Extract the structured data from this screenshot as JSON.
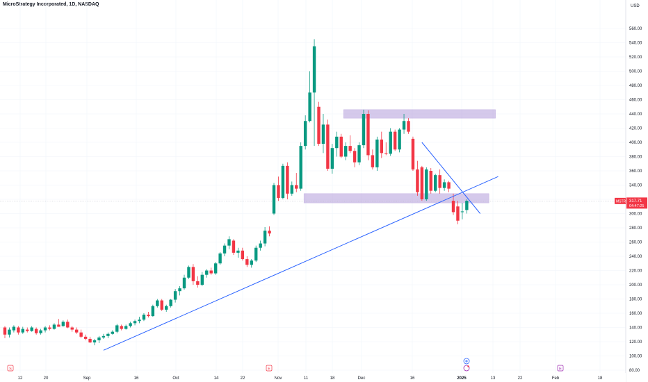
{
  "header": {
    "title": "MicroStrategy Incorporated, 1D, NASDAQ"
  },
  "price_axis": {
    "currency": "USD",
    "ticks": [
      "80.00",
      "100.00",
      "120.00",
      "140.00",
      "160.00",
      "180.00",
      "200.00",
      "220.00",
      "240.00",
      "260.00",
      "280.00",
      "300.00",
      "320.00",
      "340.00",
      "360.00",
      "380.00",
      "400.00",
      "420.00",
      "440.00",
      "460.00",
      "480.00",
      "500.00",
      "520.00",
      "540.00",
      "560.00"
    ]
  },
  "time_axis": {
    "ticks": [
      "12",
      "20",
      "Sep",
      "16",
      "Oct",
      "14",
      "22",
      "Nov",
      "11",
      "18",
      "Dec",
      "16",
      "2025",
      "13",
      "22",
      "Feb",
      "18"
    ]
  },
  "price_label": {
    "symbol": "MSTR",
    "price": "317.71",
    "countdown": "04:47:25",
    "color": "#f23645"
  },
  "event_markers": [
    "S",
    "E",
    "E"
  ],
  "colors": {
    "up": "#089981",
    "down": "#f23645",
    "trendline": "#2962ff",
    "zone": "#b39ddb",
    "grid": "#f0f3fa"
  },
  "chart_data": {
    "type": "candlestick",
    "title": "MicroStrategy Incorporated, 1D, NASDAQ",
    "ylim": [
      75,
      575
    ],
    "candles": [
      {
        "o": 140,
        "h": 142,
        "l": 125,
        "c": 130
      },
      {
        "o": 130,
        "h": 140,
        "l": 126,
        "c": 137
      },
      {
        "o": 136,
        "h": 143,
        "l": 133,
        "c": 141
      },
      {
        "o": 140,
        "h": 142,
        "l": 130,
        "c": 133
      },
      {
        "o": 133,
        "h": 141,
        "l": 131,
        "c": 138
      },
      {
        "o": 137,
        "h": 140,
        "l": 133,
        "c": 135
      },
      {
        "o": 135,
        "h": 142,
        "l": 134,
        "c": 140
      },
      {
        "o": 138,
        "h": 140,
        "l": 130,
        "c": 132
      },
      {
        "o": 132,
        "h": 138,
        "l": 130,
        "c": 136
      },
      {
        "o": 136,
        "h": 142,
        "l": 133,
        "c": 140
      },
      {
        "o": 140,
        "h": 143,
        "l": 136,
        "c": 138
      },
      {
        "o": 138,
        "h": 146,
        "l": 137,
        "c": 144
      },
      {
        "o": 144,
        "h": 152,
        "l": 141,
        "c": 141
      },
      {
        "o": 142,
        "h": 150,
        "l": 141,
        "c": 148
      },
      {
        "o": 148,
        "h": 151,
        "l": 139,
        "c": 140
      },
      {
        "o": 140,
        "h": 142,
        "l": 134,
        "c": 137
      },
      {
        "o": 137,
        "h": 140,
        "l": 131,
        "c": 133
      },
      {
        "o": 133,
        "h": 137,
        "l": 125,
        "c": 127
      },
      {
        "o": 127,
        "h": 130,
        "l": 122,
        "c": 124
      },
      {
        "o": 124,
        "h": 127,
        "l": 118,
        "c": 119
      },
      {
        "o": 119,
        "h": 124,
        "l": 115,
        "c": 122
      },
      {
        "o": 122,
        "h": 128,
        "l": 118,
        "c": 126
      },
      {
        "o": 126,
        "h": 131,
        "l": 124,
        "c": 128
      },
      {
        "o": 128,
        "h": 133,
        "l": 125,
        "c": 131
      },
      {
        "o": 131,
        "h": 136,
        "l": 130,
        "c": 134
      },
      {
        "o": 134,
        "h": 145,
        "l": 132,
        "c": 143
      },
      {
        "o": 142,
        "h": 144,
        "l": 136,
        "c": 138
      },
      {
        "o": 138,
        "h": 144,
        "l": 137,
        "c": 142
      },
      {
        "o": 142,
        "h": 148,
        "l": 140,
        "c": 146
      },
      {
        "o": 146,
        "h": 151,
        "l": 143,
        "c": 149
      },
      {
        "o": 149,
        "h": 155,
        "l": 146,
        "c": 151
      },
      {
        "o": 151,
        "h": 160,
        "l": 149,
        "c": 158
      },
      {
        "o": 158,
        "h": 162,
        "l": 154,
        "c": 156
      },
      {
        "o": 156,
        "h": 172,
        "l": 155,
        "c": 170
      },
      {
        "o": 170,
        "h": 180,
        "l": 168,
        "c": 178
      },
      {
        "o": 178,
        "h": 180,
        "l": 163,
        "c": 165
      },
      {
        "o": 165,
        "h": 172,
        "l": 162,
        "c": 170
      },
      {
        "o": 170,
        "h": 180,
        "l": 168,
        "c": 179
      },
      {
        "o": 179,
        "h": 194,
        "l": 175,
        "c": 191
      },
      {
        "o": 191,
        "h": 198,
        "l": 185,
        "c": 195
      },
      {
        "o": 195,
        "h": 214,
        "l": 193,
        "c": 210
      },
      {
        "o": 210,
        "h": 227,
        "l": 208,
        "c": 225
      },
      {
        "o": 225,
        "h": 229,
        "l": 200,
        "c": 205
      },
      {
        "o": 205,
        "h": 212,
        "l": 196,
        "c": 200
      },
      {
        "o": 200,
        "h": 218,
        "l": 198,
        "c": 214
      },
      {
        "o": 214,
        "h": 222,
        "l": 210,
        "c": 220
      },
      {
        "o": 220,
        "h": 224,
        "l": 214,
        "c": 216
      },
      {
        "o": 216,
        "h": 232,
        "l": 214,
        "c": 230
      },
      {
        "o": 230,
        "h": 246,
        "l": 228,
        "c": 244
      },
      {
        "o": 244,
        "h": 258,
        "l": 240,
        "c": 255
      },
      {
        "o": 255,
        "h": 268,
        "l": 250,
        "c": 264
      },
      {
        "o": 262,
        "h": 264,
        "l": 242,
        "c": 245
      },
      {
        "o": 245,
        "h": 252,
        "l": 238,
        "c": 248
      },
      {
        "o": 248,
        "h": 252,
        "l": 234,
        "c": 236
      },
      {
        "o": 236,
        "h": 240,
        "l": 225,
        "c": 228
      },
      {
        "o": 228,
        "h": 236,
        "l": 224,
        "c": 234
      },
      {
        "o": 234,
        "h": 255,
        "l": 232,
        "c": 252
      },
      {
        "o": 252,
        "h": 262,
        "l": 248,
        "c": 258
      },
      {
        "o": 258,
        "h": 281,
        "l": 254,
        "c": 276
      },
      {
        "o": 276,
        "h": 282,
        "l": 268,
        "c": 272
      },
      {
        "o": 300,
        "h": 343,
        "l": 298,
        "c": 340
      },
      {
        "o": 340,
        "h": 352,
        "l": 318,
        "c": 322
      },
      {
        "o": 322,
        "h": 370,
        "l": 320,
        "c": 367
      },
      {
        "o": 367,
        "h": 372,
        "l": 320,
        "c": 328
      },
      {
        "o": 328,
        "h": 345,
        "l": 325,
        "c": 340
      },
      {
        "o": 340,
        "h": 357,
        "l": 330,
        "c": 335
      },
      {
        "o": 335,
        "h": 400,
        "l": 332,
        "c": 395
      },
      {
        "o": 395,
        "h": 438,
        "l": 390,
        "c": 430
      },
      {
        "o": 430,
        "h": 500,
        "l": 428,
        "c": 470
      },
      {
        "o": 470,
        "h": 545,
        "l": 395,
        "c": 535
      },
      {
        "o": 450,
        "h": 457,
        "l": 395,
        "c": 398
      },
      {
        "o": 398,
        "h": 440,
        "l": 385,
        "c": 425
      },
      {
        "o": 425,
        "h": 432,
        "l": 360,
        "c": 363
      },
      {
        "o": 363,
        "h": 398,
        "l": 356,
        "c": 392
      },
      {
        "o": 392,
        "h": 415,
        "l": 380,
        "c": 408
      },
      {
        "o": 408,
        "h": 412,
        "l": 378,
        "c": 380
      },
      {
        "o": 380,
        "h": 400,
        "l": 375,
        "c": 395
      },
      {
        "o": 395,
        "h": 410,
        "l": 385,
        "c": 388
      },
      {
        "o": 388,
        "h": 392,
        "l": 365,
        "c": 372
      },
      {
        "o": 372,
        "h": 400,
        "l": 368,
        "c": 396
      },
      {
        "o": 396,
        "h": 446,
        "l": 392,
        "c": 440
      },
      {
        "o": 440,
        "h": 445,
        "l": 375,
        "c": 382
      },
      {
        "o": 382,
        "h": 390,
        "l": 362,
        "c": 365
      },
      {
        "o": 365,
        "h": 408,
        "l": 360,
        "c": 404
      },
      {
        "o": 404,
        "h": 415,
        "l": 378,
        "c": 385
      },
      {
        "o": 385,
        "h": 400,
        "l": 382,
        "c": 384
      },
      {
        "o": 384,
        "h": 420,
        "l": 381,
        "c": 415
      },
      {
        "o": 415,
        "h": 418,
        "l": 388,
        "c": 390
      },
      {
        "o": 390,
        "h": 420,
        "l": 386,
        "c": 418
      },
      {
        "o": 418,
        "h": 440,
        "l": 412,
        "c": 430
      },
      {
        "o": 430,
        "h": 434,
        "l": 412,
        "c": 415
      },
      {
        "o": 405,
        "h": 408,
        "l": 360,
        "c": 362
      },
      {
        "o": 362,
        "h": 374,
        "l": 325,
        "c": 330
      },
      {
        "o": 365,
        "h": 367,
        "l": 318,
        "c": 320
      },
      {
        "o": 320,
        "h": 365,
        "l": 318,
        "c": 362
      },
      {
        "o": 360,
        "h": 364,
        "l": 328,
        "c": 332
      },
      {
        "o": 332,
        "h": 356,
        "l": 330,
        "c": 354
      },
      {
        "o": 354,
        "h": 362,
        "l": 328,
        "c": 336
      },
      {
        "o": 336,
        "h": 348,
        "l": 332,
        "c": 344
      },
      {
        "o": 344,
        "h": 346,
        "l": 330,
        "c": 335
      },
      {
        "o": 318,
        "h": 328,
        "l": 298,
        "c": 302
      },
      {
        "o": 310,
        "h": 318,
        "l": 285,
        "c": 290
      },
      {
        "o": 302,
        "h": 315,
        "l": 292,
        "c": 303
      },
      {
        "o": 305,
        "h": 320,
        "l": 300,
        "c": 318
      }
    ],
    "annotations": {
      "resistance_zone": [
        434,
        446
      ],
      "support_zone": [
        315,
        328
      ],
      "rising_trendline": {
        "from": [
          5,
          108
        ],
        "to": [
          102,
          352
        ]
      },
      "falling_trendline": {
        "from": [
          86,
          400
        ],
        "to": [
          101,
          300
        ]
      }
    }
  }
}
